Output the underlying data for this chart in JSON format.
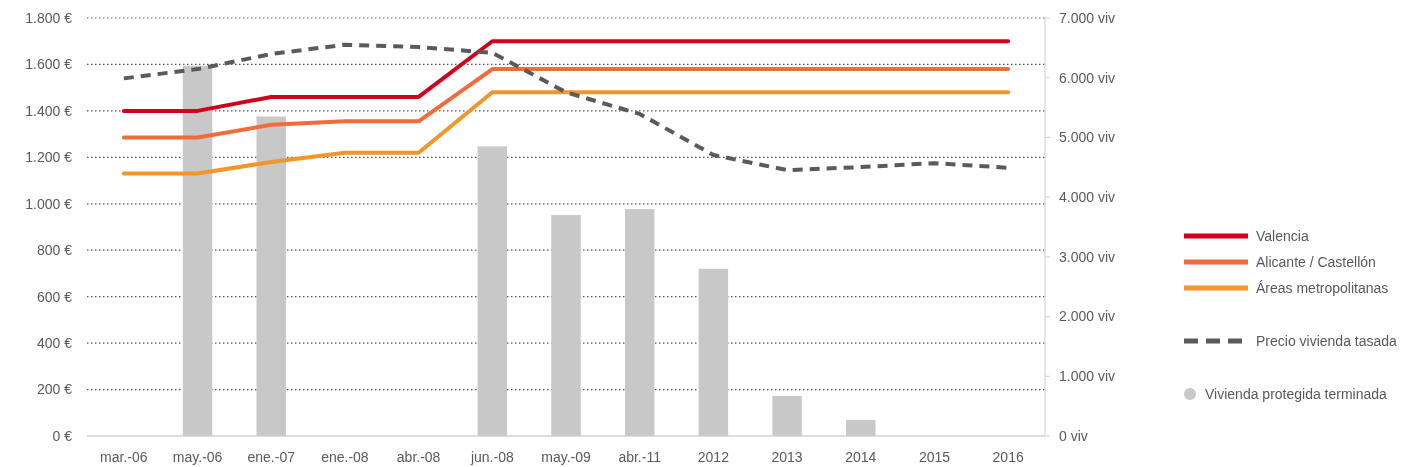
{
  "chart_data": {
    "type": "line",
    "categories": [
      "mar.-06",
      "may.-06",
      "ene.-07",
      "ene.-08",
      "abr.-08",
      "jun.-08",
      "may.-09",
      "abr.-11",
      "2012",
      "2013",
      "2014",
      "2015",
      "2016"
    ],
    "series": [
      {
        "name": "Vivienda protegida terminada",
        "type": "bar",
        "axis": "y2",
        "color": "#c8c8c8",
        "values": [
          null,
          6200,
          5350,
          null,
          null,
          4850,
          3700,
          3800,
          2800,
          670,
          270,
          null,
          null
        ]
      },
      {
        "name": "Valencia",
        "color": "#d0021b",
        "values": [
          1400,
          1400,
          1460,
          1460,
          1460,
          1700,
          1700,
          1700,
          1700,
          1700,
          1700,
          1700,
          1700
        ]
      },
      {
        "name": "Alicante / Castellón",
        "color": "#f26b3a",
        "values": [
          1285,
          1285,
          1340,
          1355,
          1355,
          1580,
          1580,
          1580,
          1580,
          1580,
          1580,
          1580,
          1580
        ]
      },
      {
        "name": "Áreas metropolitanas",
        "color": "#f0962a",
        "values": [
          1130,
          1130,
          1180,
          1220,
          1220,
          1480,
          1480,
          1480,
          1480,
          1480,
          1480,
          1480,
          1480
        ]
      },
      {
        "name": "Precio vivienda tasada",
        "color": "#5a5a5a",
        "line_style": "dashed",
        "values": [
          1540,
          1580,
          1645,
          1685,
          1675,
          1650,
          1480,
          1387,
          1210,
          1145,
          1158,
          1175,
          1155
        ]
      }
    ],
    "ylim": [
      0,
      1800
    ],
    "yticks": [
      {
        "value": 0,
        "label": "0 €"
      },
      {
        "value": 200,
        "label": "200 €"
      },
      {
        "value": 400,
        "label": "400 €"
      },
      {
        "value": 600,
        "label": "600 €"
      },
      {
        "value": 800,
        "label": "800 €"
      },
      {
        "value": 1000,
        "label": "1.000 €"
      },
      {
        "value": 1200,
        "label": "1.200 €"
      },
      {
        "value": 1400,
        "label": "1.400 €"
      },
      {
        "value": 1600,
        "label": "1.600 €"
      },
      {
        "value": 1800,
        "label": "1.800 €"
      }
    ],
    "y2lim": [
      0,
      7000
    ],
    "y2ticks": [
      {
        "value": 0,
        "label": "0 viv"
      },
      {
        "value": 1000,
        "label": "1.000 viv"
      },
      {
        "value": 2000,
        "label": "2.000 viv"
      },
      {
        "value": 3000,
        "label": "3.000 viv"
      },
      {
        "value": 4000,
        "label": "4.000 viv"
      },
      {
        "value": 5000,
        "label": "5.000 viv"
      },
      {
        "value": 6000,
        "label": "6.000 viv"
      },
      {
        "value": 7000,
        "label": "7.000 viv"
      }
    ],
    "grid": "y",
    "legend": "right"
  }
}
